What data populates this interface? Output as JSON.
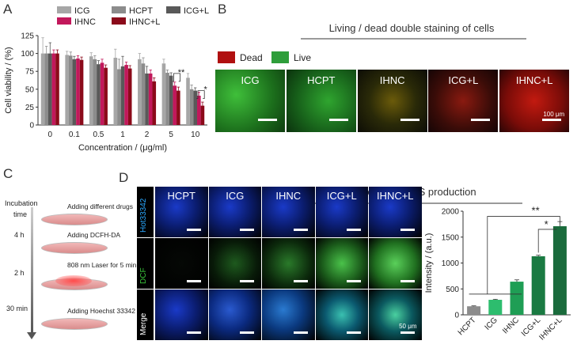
{
  "panels": {
    "A": "A",
    "B": "B",
    "C": "C",
    "D": "D"
  },
  "chart_data": [
    {
      "type": "bar",
      "ylabel": "Cell viability / (%)",
      "xlabel": "Concentration / (μg/ml)",
      "categories": [
        "0",
        "0.1",
        "0.5",
        "1",
        "2",
        "5",
        "10"
      ],
      "ylim": [
        0,
        125
      ],
      "yticks": [
        "0",
        "25",
        "50",
        "75",
        "100",
        "125"
      ],
      "series": [
        {
          "name": "ICG",
          "color": "#a6a6a6",
          "values": [
            100,
            98,
            96,
            94,
            92,
            86,
            66
          ],
          "errors": [
            22,
            5,
            5,
            12,
            8,
            6,
            6
          ]
        },
        {
          "name": "HCPT",
          "color": "#8c8c8c",
          "values": [
            100,
            97,
            92,
            78,
            86,
            73,
            50
          ],
          "errors": [
            10,
            5,
            5,
            14,
            8,
            4,
            6
          ]
        },
        {
          "name": "ICG+L",
          "color": "#595959",
          "values": [
            100,
            92,
            85,
            82,
            72,
            69,
            48
          ],
          "errors": [
            15,
            4,
            5,
            14,
            10,
            4,
            4
          ]
        },
        {
          "name": "IHNC",
          "color": "#c2185b",
          "values": [
            100,
            93,
            87,
            84,
            72,
            55,
            41
          ],
          "errors": [
            5,
            4,
            5,
            4,
            5,
            5,
            5
          ]
        },
        {
          "name": "IHNC+L",
          "color": "#8b0a1a",
          "values": [
            100,
            91,
            80,
            79,
            61,
            48,
            27
          ],
          "errors": [
            5,
            4,
            4,
            4,
            5,
            5,
            5
          ]
        }
      ],
      "annotations": [
        "**",
        "*"
      ]
    },
    {
      "type": "bar",
      "ylabel": "Intensity / (a.u.)",
      "categories": [
        "HCPT",
        "ICG",
        "IHNC",
        "ICG+L",
        "IHNC+L"
      ],
      "values": [
        165,
        290,
        640,
        1130,
        1710
      ],
      "errors": [
        8,
        10,
        35,
        20,
        90
      ],
      "colors": [
        "#8c8c8c",
        "#2dbd6e",
        "#1f9e55",
        "#1a7a42",
        "#1a6b3c"
      ],
      "ylim": [
        0,
        2000
      ],
      "yticks": [
        "0",
        "500",
        "1000",
        "1500",
        "2000"
      ],
      "annotations": [
        "**",
        "*"
      ]
    }
  ],
  "panelB": {
    "title": "Living / dead double staining of cells",
    "legend": [
      {
        "label": "Dead",
        "color": "#b01010"
      },
      {
        "label": "Live",
        "color": "#2e9e3a"
      }
    ],
    "images": [
      "ICG",
      "HCPT",
      "IHNC",
      "ICG+L",
      "IHNC+L"
    ],
    "scalebar_text": "100 μm"
  },
  "panelC": {
    "timeline": [
      "Incubation",
      "time",
      "4 h",
      "2 h",
      "30 min"
    ],
    "steps": [
      "Adding different drugs",
      "Adding DCFH-DA",
      "808 nm Laser for 5 min",
      "Adding Hoechst 33342"
    ]
  },
  "panelD": {
    "title": "Intracellular ROS production",
    "columns": [
      "HCPT",
      "ICG",
      "IHNC",
      "ICG+L",
      "IHNC+L"
    ],
    "rows": [
      "Hot33342",
      "DCF",
      "Merge"
    ],
    "scalebar_text": "50 μm"
  }
}
